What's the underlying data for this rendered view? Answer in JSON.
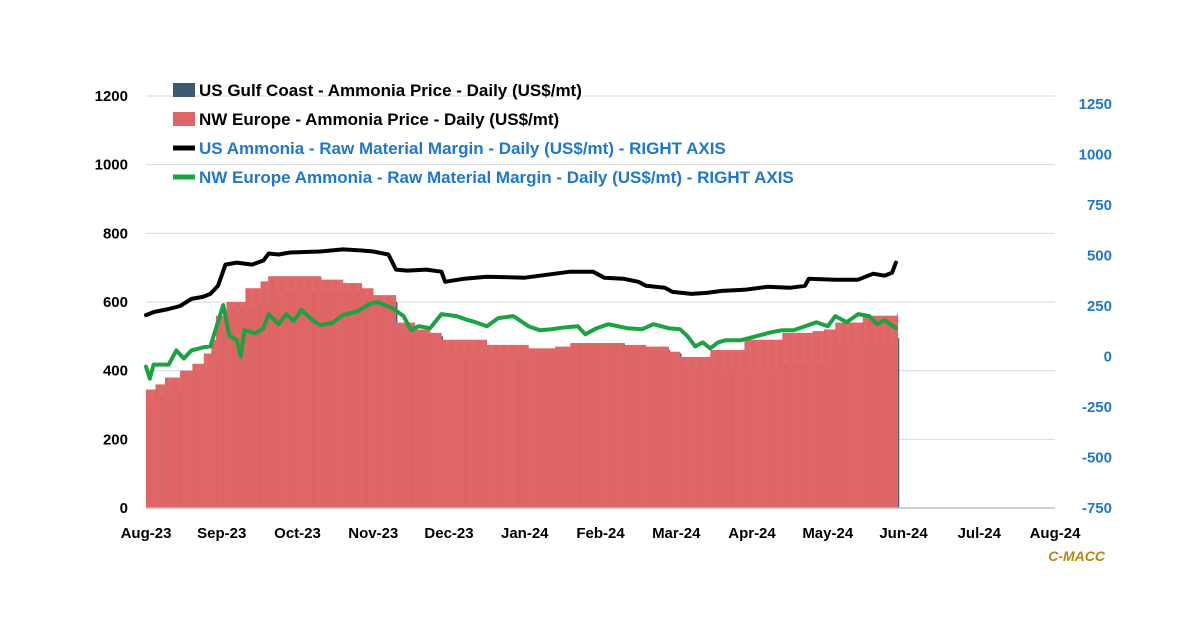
{
  "chart_data": {
    "type": "bar+line",
    "title": "",
    "source": "C-MACC",
    "x_labels": [
      "Aug-23",
      "Sep-23",
      "Oct-23",
      "Nov-23",
      "Dec-23",
      "Jan-24",
      "Feb-24",
      "Mar-24",
      "Apr-24",
      "May-24",
      "Jun-24",
      "Jul-24",
      "Aug-24"
    ],
    "left_axis": {
      "min": 0,
      "max": 1200,
      "ticks": [
        0,
        200,
        400,
        600,
        800,
        1000,
        1200
      ]
    },
    "right_axis": {
      "min": -750,
      "max": 1250,
      "ticks": [
        -750,
        -500,
        -250,
        0,
        250,
        500,
        750,
        1000,
        1250
      ]
    },
    "series": [
      {
        "name": "US Gulf Coast - Ammonia Price - Daily (US$/mt)",
        "type": "bar",
        "axis": "left",
        "color": "#3d5a73",
        "points": [
          [
            0,
            305
          ],
          [
            0.12,
            330
          ],
          [
            0.3,
            345
          ],
          [
            0.45,
            390
          ],
          [
            0.6,
            395
          ],
          [
            0.75,
            400
          ],
          [
            0.85,
            430
          ],
          [
            0.92,
            520
          ],
          [
            1.05,
            580
          ],
          [
            1.3,
            585
          ],
          [
            1.45,
            600
          ],
          [
            1.6,
            620
          ],
          [
            1.75,
            630
          ],
          [
            2.3,
            630
          ],
          [
            2.6,
            630
          ],
          [
            2.85,
            620
          ],
          [
            3.0,
            600
          ],
          [
            3.3,
            520
          ],
          [
            3.55,
            510
          ],
          [
            3.75,
            500
          ],
          [
            3.9,
            450
          ],
          [
            4.5,
            450
          ],
          [
            5.05,
            455
          ],
          [
            5.4,
            460
          ],
          [
            5.6,
            480
          ],
          [
            6.05,
            480
          ],
          [
            6.3,
            470
          ],
          [
            6.6,
            460
          ],
          [
            6.9,
            450
          ],
          [
            7.05,
            410
          ],
          [
            7.25,
            410
          ],
          [
            7.4,
            405
          ],
          [
            7.9,
            400
          ],
          [
            8.4,
            420
          ],
          [
            8.8,
            420
          ],
          [
            8.95,
            430
          ],
          [
            9.1,
            480
          ],
          [
            9.45,
            480
          ],
          [
            9.9,
            495
          ]
        ]
      },
      {
        "name": "NW Europe - Ammonia Price - Daily (US$/mt)",
        "type": "bar",
        "axis": "left",
        "color": "#e06666",
        "points": [
          [
            0,
            345
          ],
          [
            0.12,
            360
          ],
          [
            0.25,
            380
          ],
          [
            0.45,
            400
          ],
          [
            0.6,
            420
          ],
          [
            0.75,
            450
          ],
          [
            0.85,
            490
          ],
          [
            0.92,
            560
          ],
          [
            1.05,
            600
          ],
          [
            1.3,
            640
          ],
          [
            1.5,
            660
          ],
          [
            1.6,
            675
          ],
          [
            1.9,
            675
          ],
          [
            2.3,
            665
          ],
          [
            2.6,
            655
          ],
          [
            2.85,
            640
          ],
          [
            3.0,
            620
          ],
          [
            3.3,
            540
          ],
          [
            3.55,
            520
          ],
          [
            3.75,
            510
          ],
          [
            3.9,
            490
          ],
          [
            4.5,
            475
          ],
          [
            5.05,
            465
          ],
          [
            5.4,
            470
          ],
          [
            5.6,
            480
          ],
          [
            6.05,
            480
          ],
          [
            6.3,
            475
          ],
          [
            6.6,
            470
          ],
          [
            6.9,
            455
          ],
          [
            7.05,
            440
          ],
          [
            7.25,
            440
          ],
          [
            7.45,
            460
          ],
          [
            7.9,
            490
          ],
          [
            8.4,
            510
          ],
          [
            8.8,
            515
          ],
          [
            8.95,
            520
          ],
          [
            9.1,
            540
          ],
          [
            9.45,
            560
          ],
          [
            9.9,
            565
          ]
        ]
      },
      {
        "name": "US Ammonia - Raw Material Margin - Daily (US$/mt) - RIGHT AXIS",
        "type": "line",
        "axis": "right",
        "color": "#000000",
        "points": [
          [
            0,
            205
          ],
          [
            0.1,
            220
          ],
          [
            0.3,
            235
          ],
          [
            0.45,
            250
          ],
          [
            0.6,
            285
          ],
          [
            0.75,
            295
          ],
          [
            0.85,
            310
          ],
          [
            0.95,
            350
          ],
          [
            1.05,
            455
          ],
          [
            1.2,
            465
          ],
          [
            1.4,
            455
          ],
          [
            1.55,
            475
          ],
          [
            1.62,
            510
          ],
          [
            1.75,
            505
          ],
          [
            1.9,
            515
          ],
          [
            2.3,
            520
          ],
          [
            2.6,
            530
          ],
          [
            2.85,
            525
          ],
          [
            3.0,
            520
          ],
          [
            3.2,
            505
          ],
          [
            3.3,
            430
          ],
          [
            3.45,
            425
          ],
          [
            3.7,
            430
          ],
          [
            3.9,
            420
          ],
          [
            3.95,
            370
          ],
          [
            4.2,
            385
          ],
          [
            4.5,
            395
          ],
          [
            5.0,
            390
          ],
          [
            5.4,
            410
          ],
          [
            5.6,
            420
          ],
          [
            5.9,
            420
          ],
          [
            6.05,
            390
          ],
          [
            6.3,
            385
          ],
          [
            6.5,
            370
          ],
          [
            6.6,
            350
          ],
          [
            6.85,
            340
          ],
          [
            6.95,
            320
          ],
          [
            7.2,
            310
          ],
          [
            7.4,
            315
          ],
          [
            7.6,
            325
          ],
          [
            7.9,
            330
          ],
          [
            8.2,
            345
          ],
          [
            8.5,
            340
          ],
          [
            8.7,
            350
          ],
          [
            8.75,
            385
          ],
          [
            9.1,
            380
          ],
          [
            9.4,
            380
          ],
          [
            9.5,
            395
          ],
          [
            9.6,
            410
          ],
          [
            9.75,
            400
          ],
          [
            9.85,
            415
          ],
          [
            9.9,
            465
          ]
        ]
      },
      {
        "name": "NW Europe Ammonia - Raw Material Margin - Daily (US$/mt) - RIGHT AXIS",
        "type": "line",
        "axis": "right",
        "color": "#1aa340",
        "points": [
          [
            0,
            -50
          ],
          [
            0.05,
            -110
          ],
          [
            0.1,
            -40
          ],
          [
            0.3,
            -40
          ],
          [
            0.4,
            30
          ],
          [
            0.5,
            -10
          ],
          [
            0.6,
            30
          ],
          [
            0.75,
            45
          ],
          [
            0.85,
            50
          ],
          [
            0.92,
            135
          ],
          [
            1.02,
            255
          ],
          [
            1.1,
            105
          ],
          [
            1.2,
            80
          ],
          [
            1.25,
            0
          ],
          [
            1.3,
            130
          ],
          [
            1.45,
            115
          ],
          [
            1.55,
            140
          ],
          [
            1.62,
            210
          ],
          [
            1.75,
            160
          ],
          [
            1.85,
            210
          ],
          [
            1.95,
            175
          ],
          [
            2.05,
            230
          ],
          [
            2.2,
            180
          ],
          [
            2.3,
            155
          ],
          [
            2.45,
            165
          ],
          [
            2.6,
            205
          ],
          [
            2.8,
            225
          ],
          [
            2.95,
            260
          ],
          [
            3.05,
            270
          ],
          [
            3.25,
            240
          ],
          [
            3.4,
            200
          ],
          [
            3.5,
            130
          ],
          [
            3.6,
            150
          ],
          [
            3.75,
            140
          ],
          [
            3.9,
            210
          ],
          [
            4.1,
            200
          ],
          [
            4.25,
            180
          ],
          [
            4.35,
            170
          ],
          [
            4.5,
            150
          ],
          [
            4.65,
            190
          ],
          [
            4.85,
            200
          ],
          [
            5.05,
            150
          ],
          [
            5.2,
            130
          ],
          [
            5.35,
            135
          ],
          [
            5.55,
            145
          ],
          [
            5.7,
            150
          ],
          [
            5.8,
            110
          ],
          [
            5.95,
            140
          ],
          [
            6.1,
            160
          ],
          [
            6.35,
            140
          ],
          [
            6.55,
            135
          ],
          [
            6.7,
            160
          ],
          [
            6.9,
            140
          ],
          [
            7.05,
            135
          ],
          [
            7.15,
            100
          ],
          [
            7.25,
            50
          ],
          [
            7.35,
            70
          ],
          [
            7.45,
            40
          ],
          [
            7.55,
            70
          ],
          [
            7.65,
            80
          ],
          [
            7.85,
            80
          ],
          [
            8.05,
            100
          ],
          [
            8.25,
            120
          ],
          [
            8.4,
            130
          ],
          [
            8.55,
            130
          ],
          [
            8.7,
            150
          ],
          [
            8.85,
            170
          ],
          [
            9.0,
            150
          ],
          [
            9.1,
            200
          ],
          [
            9.25,
            170
          ],
          [
            9.4,
            210
          ],
          [
            9.55,
            200
          ],
          [
            9.65,
            160
          ],
          [
            9.75,
            180
          ],
          [
            9.9,
            140
          ]
        ]
      }
    ],
    "legend_position": "top-left"
  }
}
